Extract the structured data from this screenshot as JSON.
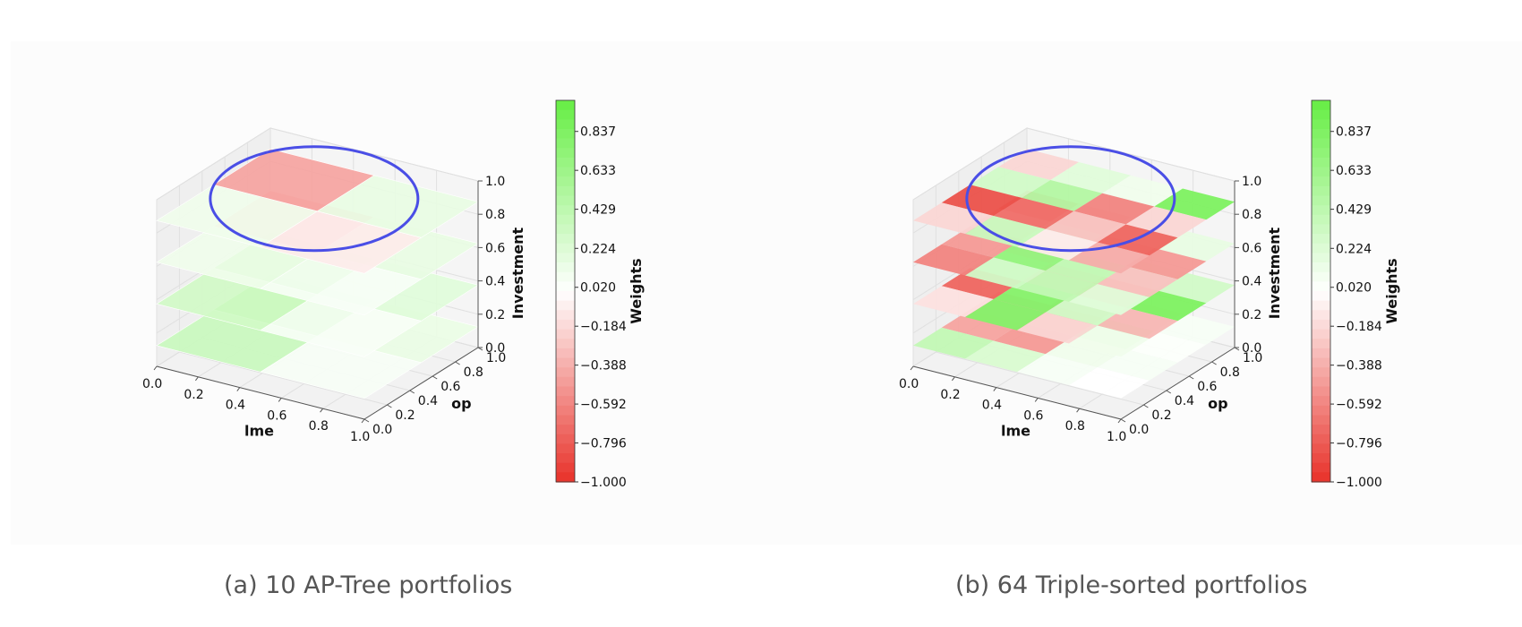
{
  "figure": {
    "captions": [
      "(a) 10 AP-Tree portfolios",
      "(b) 64 Triple-sorted portfolios"
    ]
  },
  "chart_data": [
    {
      "type": "heatmap",
      "subtype": "3d-stacked-layers",
      "caption": "(a) 10 AP-Tree portfolios",
      "axes": {
        "x": {
          "label": "lme",
          "ticks": [
            "0.0",
            "0.2",
            "0.4",
            "0.6",
            "0.8",
            "1.0"
          ],
          "range": [
            0,
            1
          ]
        },
        "y": {
          "label": "op",
          "ticks": [
            "0.0",
            "0.2",
            "0.4",
            "0.6",
            "0.8",
            "1.0"
          ],
          "range": [
            0,
            1
          ]
        },
        "z": {
          "label": "Investment",
          "ticks": [
            "0.0",
            "0.2",
            "0.4",
            "0.6",
            "0.8",
            "1.0"
          ],
          "range": [
            0,
            1
          ]
        }
      },
      "colorbar": {
        "label": "Weights",
        "ticks": [
          "0.837",
          "0.633",
          "0.429",
          "0.224",
          "0.020",
          "−0.184",
          "−0.388",
          "−0.592",
          "−0.796",
          "−1.000"
        ],
        "range": [
          -1.0,
          1.0
        ],
        "colors": {
          "negative": "#e8322a",
          "zero": "#ffffff",
          "positive": "#66ee44"
        }
      },
      "grid": true,
      "annotation": {
        "shape": "ellipse",
        "color": "#4a4ee6",
        "layer_z": 0.875
      },
      "layers": [
        {
          "z": 0.125,
          "rects": [
            {
              "x": [
                0,
                0.5
              ],
              "y": [
                0,
                0.5
              ],
              "w": 0.35
            },
            {
              "x": [
                0.5,
                1
              ],
              "y": [
                0,
                0.5
              ],
              "w": 0.05
            },
            {
              "x": [
                0,
                0.5
              ],
              "y": [
                0.5,
                1
              ],
              "w": 0.8
            },
            {
              "x": [
                0.5,
                1
              ],
              "y": [
                0.5,
                1
              ],
              "w": 0.14
            }
          ]
        },
        {
          "z": 0.375,
          "rects": [
            {
              "x": [
                0,
                0.5
              ],
              "y": [
                0,
                0.5
              ],
              "w": 0.3
            },
            {
              "x": [
                0.5,
                1
              ],
              "y": [
                0,
                0.5
              ],
              "w": 0.05
            },
            {
              "x": [
                0,
                0.5
              ],
              "y": [
                0.5,
                1
              ],
              "w": 0.8
            },
            {
              "x": [
                0.5,
                1
              ],
              "y": [
                0.5,
                1
              ],
              "w": 0.2
            }
          ]
        },
        {
          "z": 0.625,
          "rects": [
            {
              "x": [
                0,
                0.5
              ],
              "y": [
                0,
                0.5
              ],
              "w": 0.1
            },
            {
              "x": [
                0.5,
                1
              ],
              "y": [
                0,
                0.5
              ],
              "w": 0.05
            },
            {
              "x": [
                0,
                0.5
              ],
              "y": [
                0.5,
                1
              ],
              "w": -0.35
            },
            {
              "x": [
                0.5,
                1
              ],
              "y": [
                0.5,
                1
              ],
              "w": 0.15
            }
          ]
        },
        {
          "z": 0.875,
          "rects": [
            {
              "x": [
                0,
                0.5
              ],
              "y": [
                0,
                0.5
              ],
              "w": 0.1
            },
            {
              "x": [
                0.5,
                1
              ],
              "y": [
                0,
                0.5
              ],
              "w": -0.1
            },
            {
              "x": [
                0,
                0.5
              ],
              "y": [
                0.5,
                1
              ],
              "w": -0.45
            },
            {
              "x": [
                0.5,
                1
              ],
              "y": [
                0.5,
                1
              ],
              "w": 0.15
            }
          ]
        }
      ]
    },
    {
      "type": "heatmap",
      "subtype": "3d-stacked-layers",
      "caption": "(b) 64 Triple-sorted portfolios",
      "axes": {
        "x": {
          "label": "lme",
          "ticks": [
            "0.0",
            "0.2",
            "0.4",
            "0.6",
            "0.8",
            "1.0"
          ],
          "range": [
            0,
            1
          ]
        },
        "y": {
          "label": "op",
          "ticks": [
            "0.0",
            "0.2",
            "0.4",
            "0.6",
            "0.8",
            "1.0"
          ],
          "range": [
            0,
            1
          ]
        },
        "z": {
          "label": "Investment",
          "ticks": [
            "0.0",
            "0.2",
            "0.4",
            "0.6",
            "0.8",
            "1.0"
          ],
          "range": [
            0,
            1
          ]
        }
      },
      "colorbar": {
        "label": "Weights",
        "ticks": [
          "0.837",
          "0.633",
          "0.429",
          "0.224",
          "0.020",
          "−0.184",
          "−0.388",
          "−0.592",
          "−0.796",
          "−1.000"
        ],
        "range": [
          -1.0,
          1.0
        ],
        "colors": {
          "negative": "#e8322a",
          "zero": "#ffffff",
          "positive": "#66ee44"
        }
      },
      "grid": true,
      "annotation": {
        "shape": "ellipse",
        "color": "#4a4ee6",
        "layer_z": 0.875
      },
      "layers": [
        {
          "z": 0.125,
          "grid": [
            [
              0.4,
              0.25,
              0.05,
              0.0
            ],
            [
              -0.45,
              -0.5,
              0.1,
              0.05
            ],
            [
              -0.4,
              -0.45,
              0.45,
              0.02
            ],
            [
              0.1,
              -0.3,
              -0.15,
              0.05
            ]
          ]
        },
        {
          "z": 0.375,
          "grid": [
            [
              -0.15,
              0.8,
              -0.2,
              0.1
            ],
            [
              -0.75,
              0.8,
              0.3,
              -0.35
            ],
            [
              0.3,
              -0.3,
              -0.45,
              0.85
            ],
            [
              -0.35,
              0.25,
              0.2,
              0.3
            ]
          ]
        },
        {
          "z": 0.625,
          "grid": [
            [
              -0.6,
              0.3,
              0.4,
              0.2
            ],
            [
              -0.5,
              0.7,
              0.4,
              -0.3
            ],
            [
              -0.35,
              0.2,
              -0.25,
              -0.5
            ],
            [
              -0.7,
              -0.2,
              0.05,
              0.15
            ]
          ]
        },
        {
          "z": 0.875,
          "grid": [
            [
              -0.2,
              0.35,
              -0.1,
              -0.4
            ],
            [
              -0.85,
              -0.7,
              -0.3,
              -0.75
            ],
            [
              0.3,
              0.5,
              -0.6,
              -0.2
            ],
            [
              -0.2,
              0.2,
              0.1,
              0.85
            ]
          ]
        }
      ]
    }
  ]
}
